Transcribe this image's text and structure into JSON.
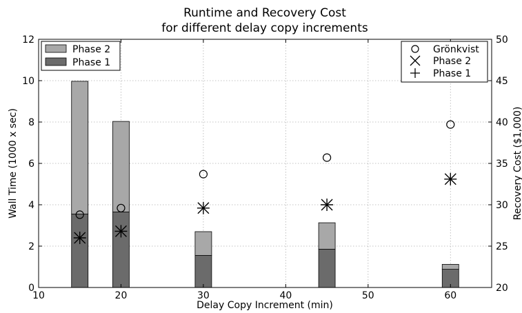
{
  "chart_data": {
    "type": "bar",
    "title": [
      "Runtime and Recovery Cost",
      "for different delay copy increments"
    ],
    "xlabel": "Delay Copy Increment (min)",
    "ylabel": "Wall Time (1000 x sec)",
    "y2label": "Recovery Cost ($1,000)",
    "xlim": [
      10,
      65
    ],
    "ylim": [
      0,
      12
    ],
    "y2lim": [
      20,
      50
    ],
    "xticks": [
      10,
      20,
      30,
      40,
      50,
      60
    ],
    "yticks": [
      0,
      2,
      4,
      6,
      8,
      10,
      12
    ],
    "y2ticks": [
      20,
      25,
      30,
      35,
      40,
      45,
      50
    ],
    "grid": true,
    "x": [
      15,
      20,
      30,
      45,
      60
    ],
    "bar_series": [
      {
        "name": "Phase 1",
        "color": "#6b6b6b",
        "values": [
          3.55,
          3.65,
          1.55,
          1.85,
          0.88
        ]
      },
      {
        "name": "Phase 2",
        "color": "#a8a8a8",
        "values": [
          6.42,
          4.38,
          1.15,
          1.28,
          0.24
        ]
      }
    ],
    "bar_stack": "Phase 2 stacked on Phase 1",
    "cost_series": [
      {
        "name": "Grönkvist",
        "marker": "circle",
        "axis": "right",
        "values": [
          28.8,
          29.6,
          33.7,
          35.7,
          39.7
        ]
      },
      {
        "name": "Phase 2",
        "marker": "x",
        "axis": "right",
        "values": [
          26.0,
          26.8,
          29.6,
          30.0,
          33.1
        ]
      },
      {
        "name": "Phase 1",
        "marker": "plus",
        "axis": "right",
        "values": [
          26.0,
          26.8,
          29.6,
          30.0,
          33.1
        ]
      }
    ],
    "legend_left_placement": "top-left",
    "legend_right_placement": "top-right"
  }
}
